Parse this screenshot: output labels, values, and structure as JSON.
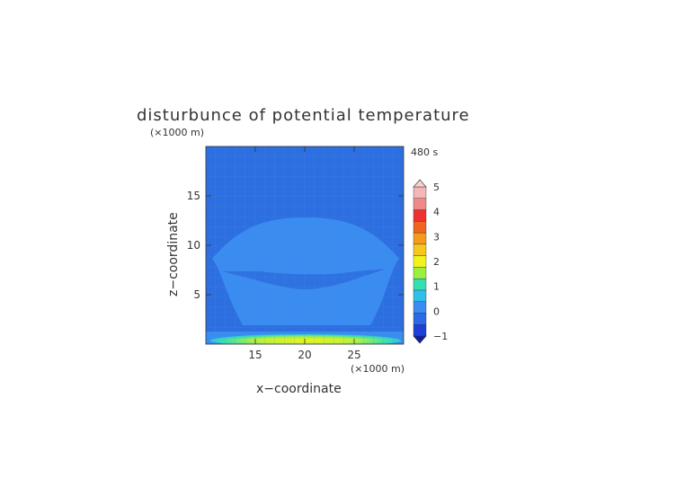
{
  "chart_data": {
    "type": "heatmap",
    "title": "disturbunce of potential temperature",
    "time_label": "480 s",
    "xlabel": "x−coordinate",
    "ylabel": "z−coordinate",
    "x_unit": "(×1000 m)",
    "z_unit": "(×1000 m)",
    "xlim": [
      10,
      30
    ],
    "ylim": [
      0,
      20
    ],
    "x_ticks": [
      15,
      20,
      25
    ],
    "y_ticks": [
      5,
      10,
      15
    ],
    "colorbar": {
      "levels": [
        -1,
        -0.5,
        0,
        0.5,
        1,
        1.5,
        2,
        2.5,
        3,
        3.5,
        4,
        4.5,
        5
      ],
      "tick_labels": [
        "5",
        "4",
        "3",
        "2",
        "1",
        "0",
        "−1"
      ],
      "colors": [
        "#1f3fd6",
        "#2a6ae8",
        "#3a8cf0",
        "#2fbfe8",
        "#35e0b0",
        "#9af03c",
        "#f2f21e",
        "#f5c81e",
        "#f59a1a",
        "#f0641e",
        "#f03030",
        "#f08a8a",
        "#f5b6b6"
      ],
      "extend": "both"
    },
    "features": [
      {
        "name": "background",
        "value": -0.25
      },
      {
        "name": "dome",
        "value": 0.1
      },
      {
        "name": "surface-warm-layer",
        "value": 2.0
      }
    ]
  }
}
